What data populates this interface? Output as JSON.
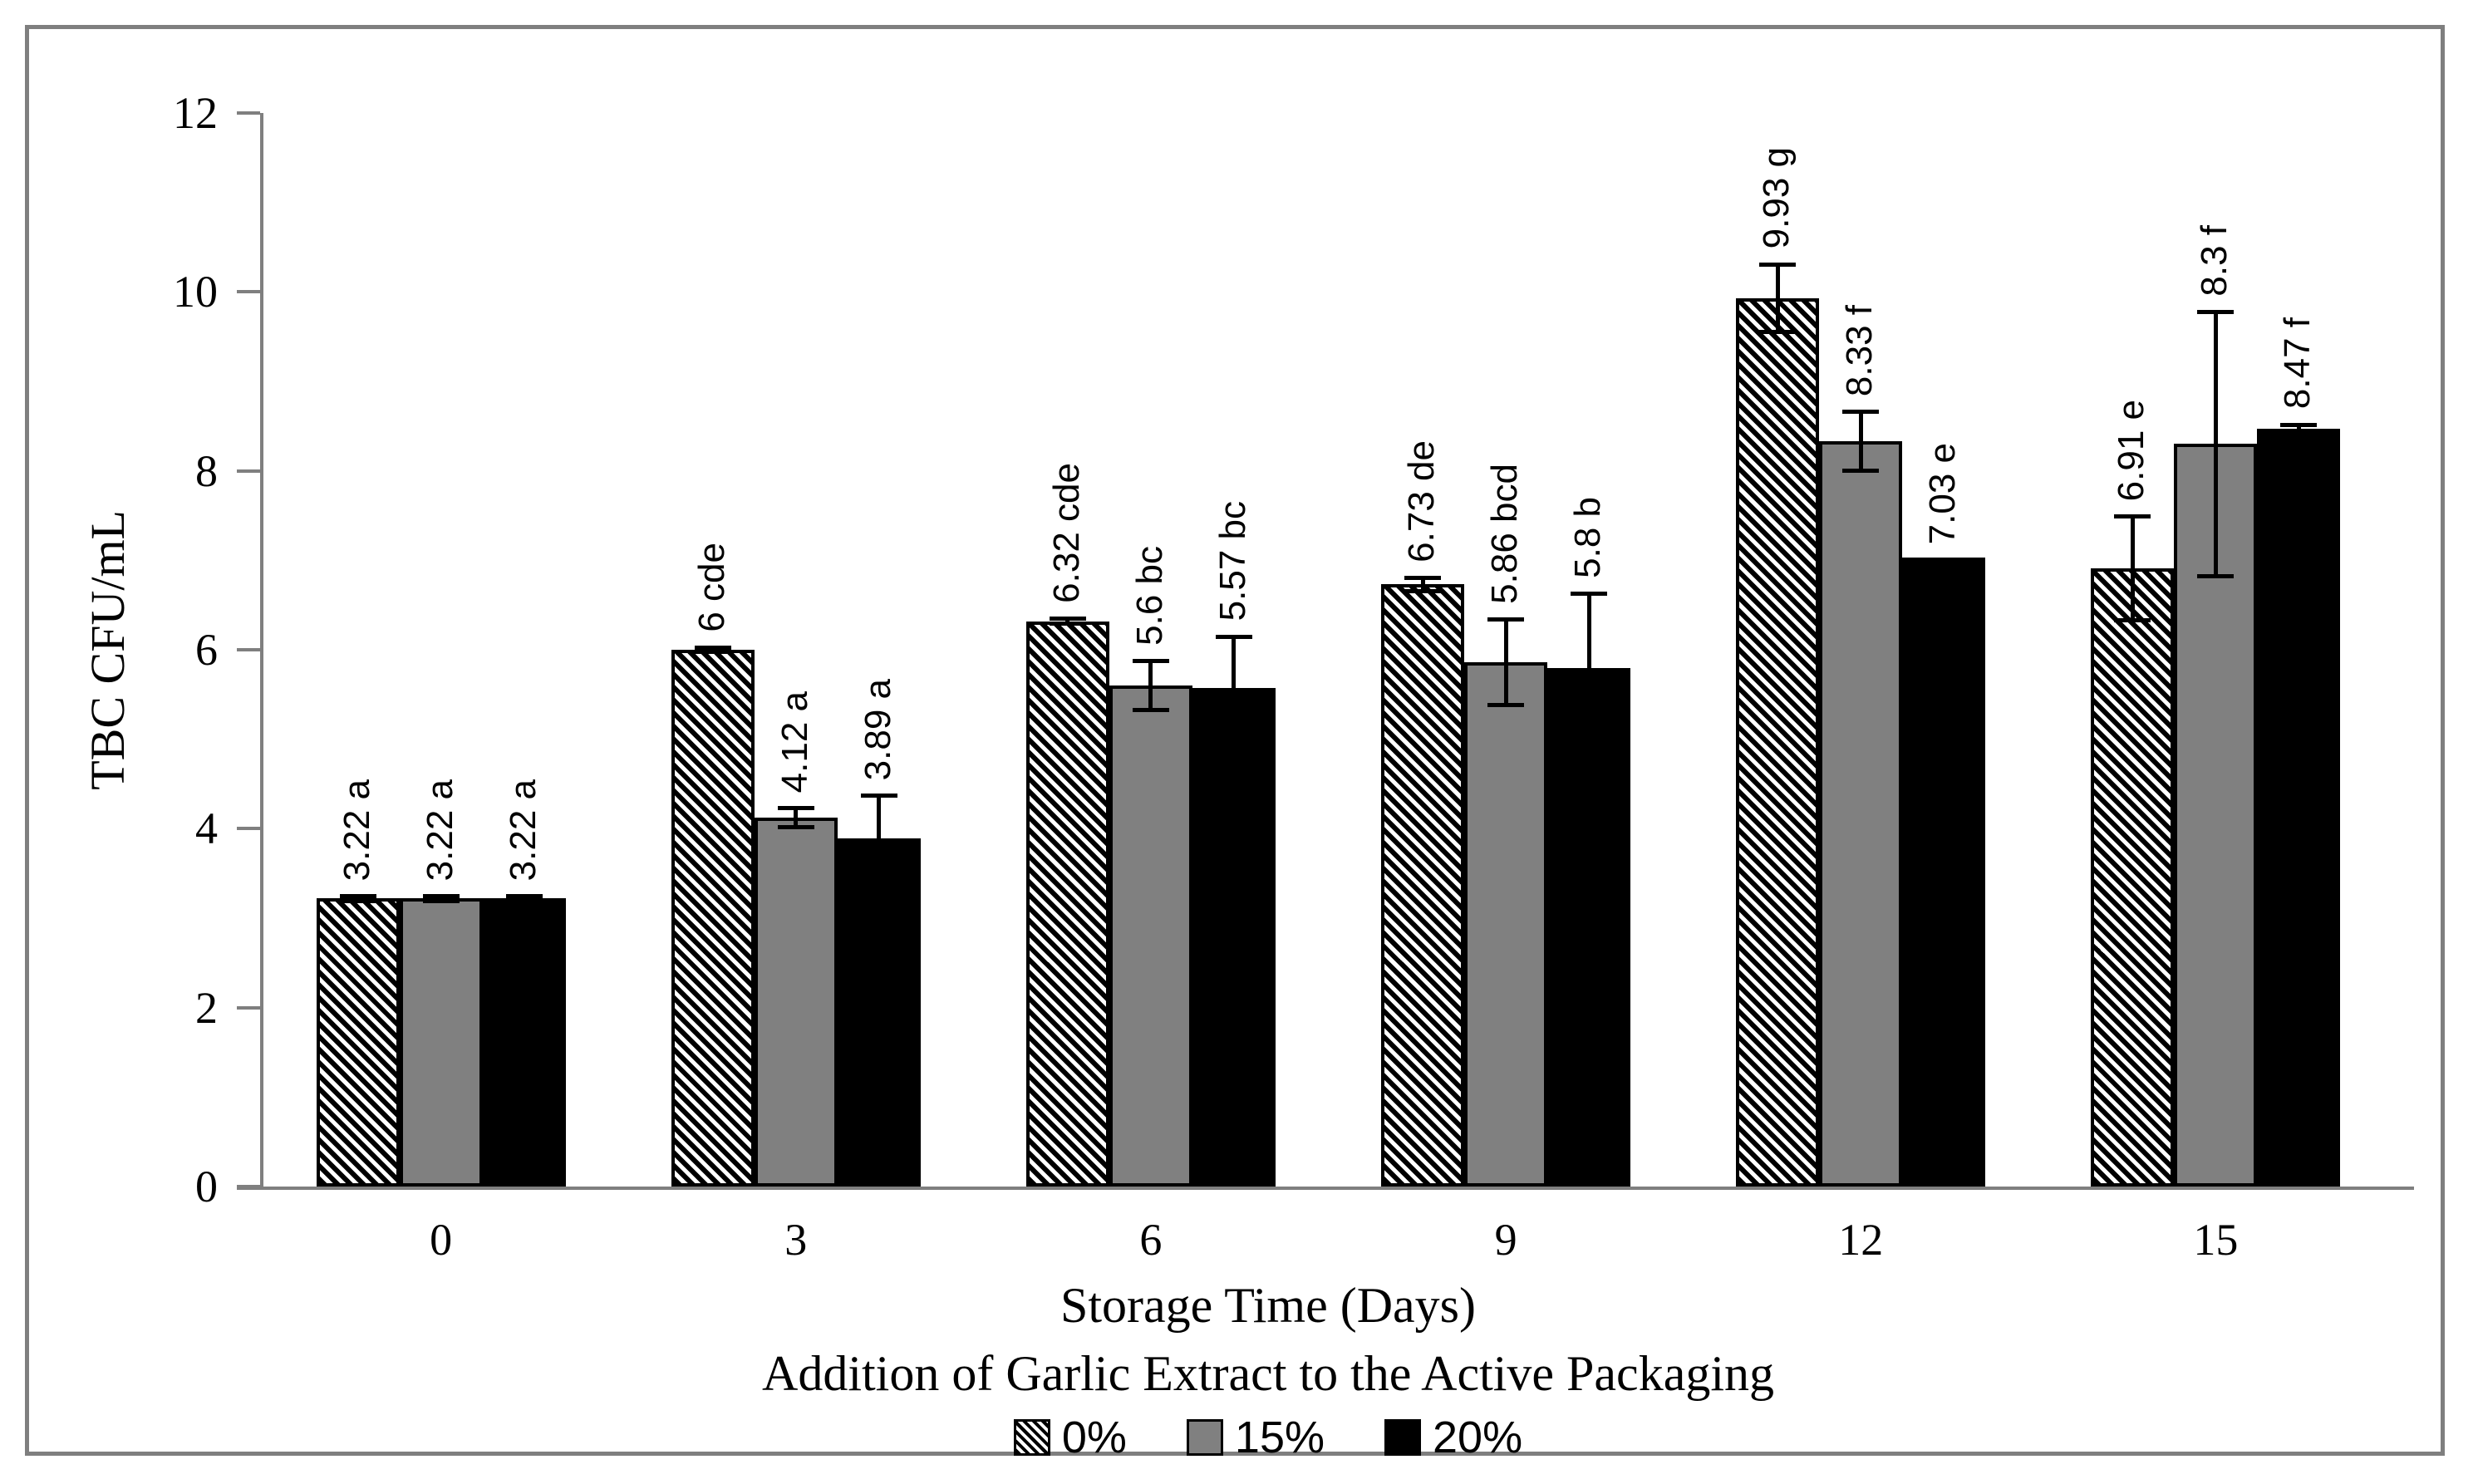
{
  "chart_data": {
    "type": "bar",
    "title": "",
    "categories": [
      "0",
      "3",
      "6",
      "9",
      "12",
      "15"
    ],
    "series": [
      {
        "name": "0%",
        "fill": "black-white-diagonal-hatch",
        "values": [
          3.22,
          6,
          6.32,
          6.73,
          9.93,
          6.91
        ],
        "errors": [
          0.05,
          0.05,
          0.05,
          0.1,
          0.4,
          0.6
        ],
        "labels": [
          "3.22 a",
          "6 cde",
          "6.32 cde",
          "6.73 de",
          "9.93 g",
          "6.91 e"
        ]
      },
      {
        "name": "15%",
        "fill": "#808080",
        "values": [
          3.22,
          4.12,
          5.6,
          5.86,
          8.33,
          8.3
        ],
        "errors": [
          0.05,
          0.13,
          0.3,
          0.5,
          0.35,
          1.5
        ],
        "labels": [
          "3.22 a",
          "4.12 a",
          "5.6 bc",
          "5.86 bcd",
          "8.33 f",
          "8.3 f"
        ]
      },
      {
        "name": "20%",
        "fill": "#000000",
        "values": [
          3.22,
          3.89,
          5.57,
          5.8,
          7.03,
          8.47
        ],
        "errors": [
          0.05,
          0.5,
          0.6,
          0.85,
          0,
          0.07
        ],
        "labels": [
          "3.22 a",
          "3.89 a",
          "5.57 bc",
          "5.8 b",
          "7.03 e",
          "8.47 f"
        ]
      }
    ],
    "ylabel": "TBC CFU/mL",
    "xlabel": "Storage Time (Days)",
    "xlabel2": "Addition of Garlic Extract to the Active Packaging",
    "ylim": [
      0,
      12
    ],
    "yticks": [
      0,
      2,
      4,
      6,
      8,
      10,
      12
    ],
    "grid": false,
    "legend_position": "bottom",
    "error_bars": true,
    "data_label_rotation_deg": 270
  },
  "colors": {
    "frame_border": "#7f7f7f",
    "axis_line": "#7f7f7f",
    "bar_gray": "#808080",
    "bar_black": "#000000",
    "text": "#000000",
    "background": "#ffffff"
  }
}
